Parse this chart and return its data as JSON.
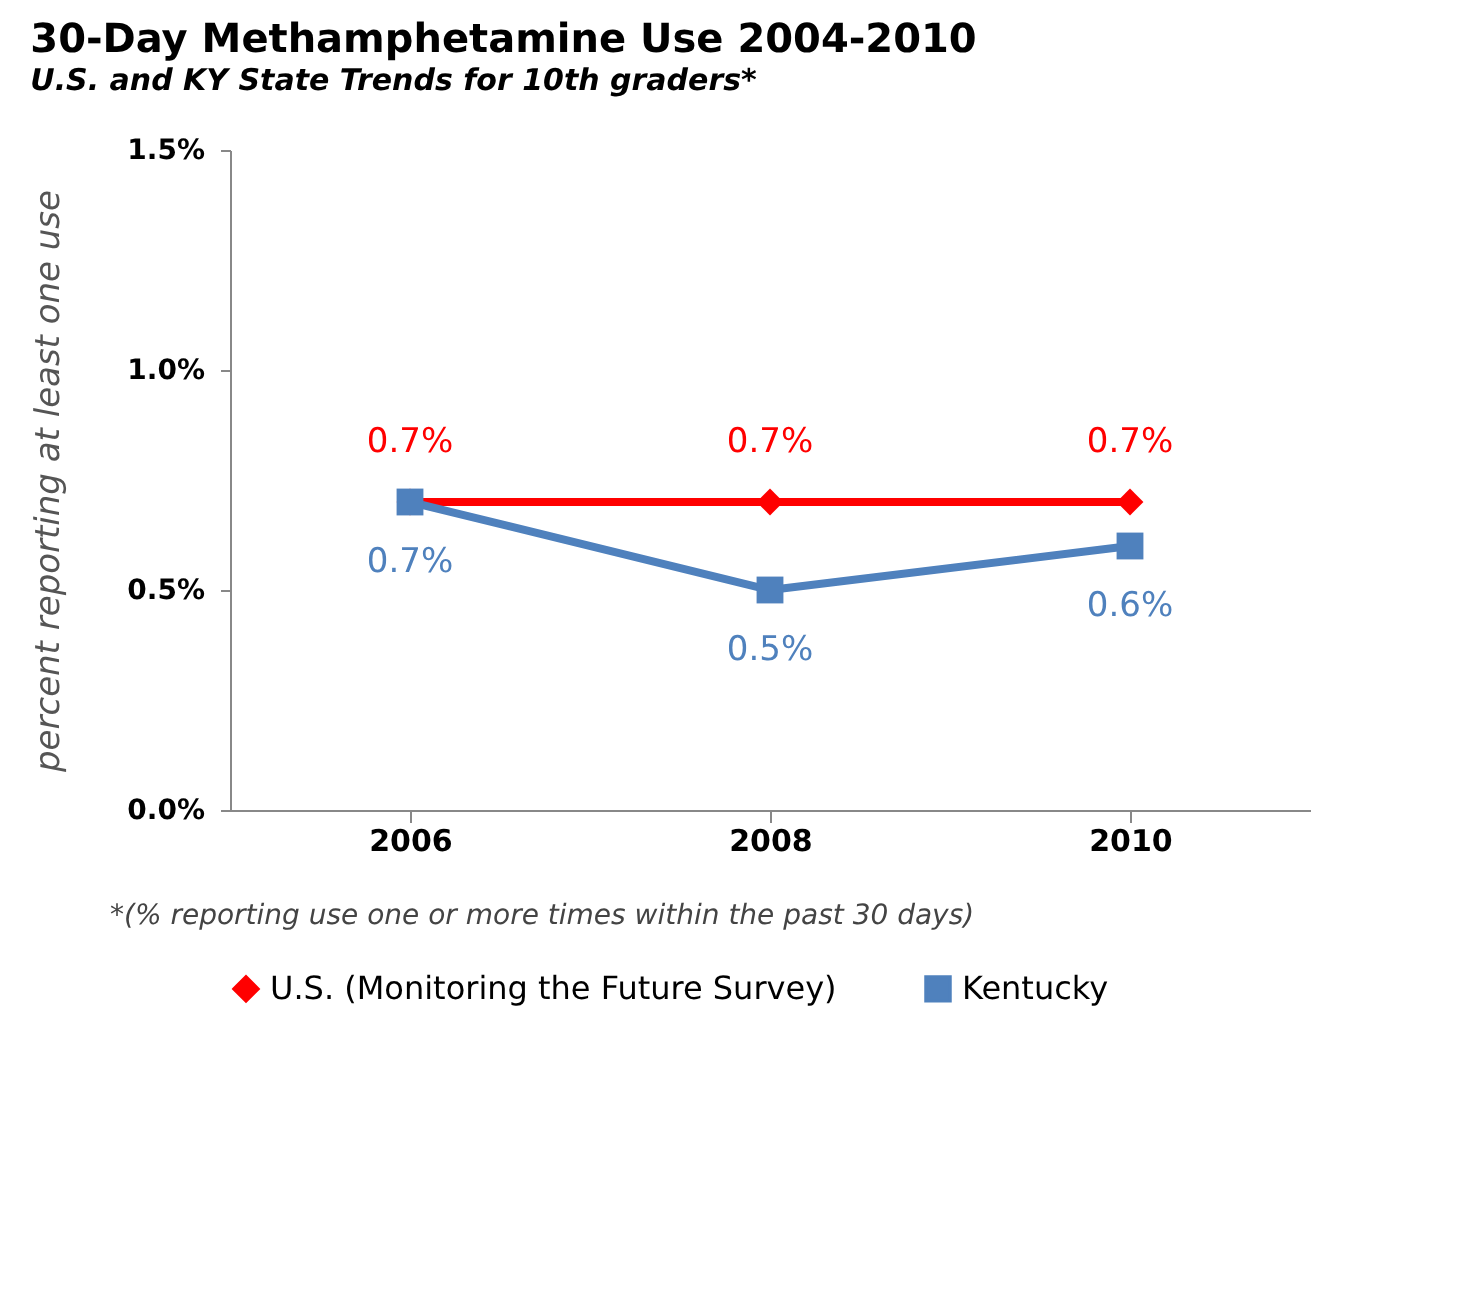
{
  "chart_data": {
    "type": "line",
    "title": "30-Day Methamphetamine Use 2004-2010",
    "subtitle": "U.S. and KY State Trends for 10th graders*",
    "ylabel": "percent reporting at least one use",
    "categories": [
      "2006",
      "2008",
      "2010"
    ],
    "series": [
      {
        "name": "U.S. (Monitoring the Future Survey)",
        "color": "#ff0000",
        "marker": "diamond",
        "values": [
          0.7,
          0.7,
          0.7
        ],
        "value_labels": [
          "0.7%",
          "0.7%",
          "0.7%"
        ]
      },
      {
        "name": "Kentucky",
        "color": "#4f81bd",
        "marker": "square",
        "values": [
          0.7,
          0.5,
          0.6
        ],
        "value_labels": [
          "0.7%",
          "0.5%",
          "0.6%"
        ]
      }
    ],
    "ylim": [
      0,
      1.5
    ],
    "yticks": [
      {
        "value": 0,
        "label": "0.0%"
      },
      {
        "value": 0.5,
        "label": "0.5%"
      },
      {
        "value": 1.0,
        "label": "1.0%"
      },
      {
        "value": 1.5,
        "label": "1.5%"
      }
    ],
    "grid": false,
    "legend": "bottom",
    "annotations": [
      "*(% reporting use one or more times within the past 30 days)"
    ]
  }
}
